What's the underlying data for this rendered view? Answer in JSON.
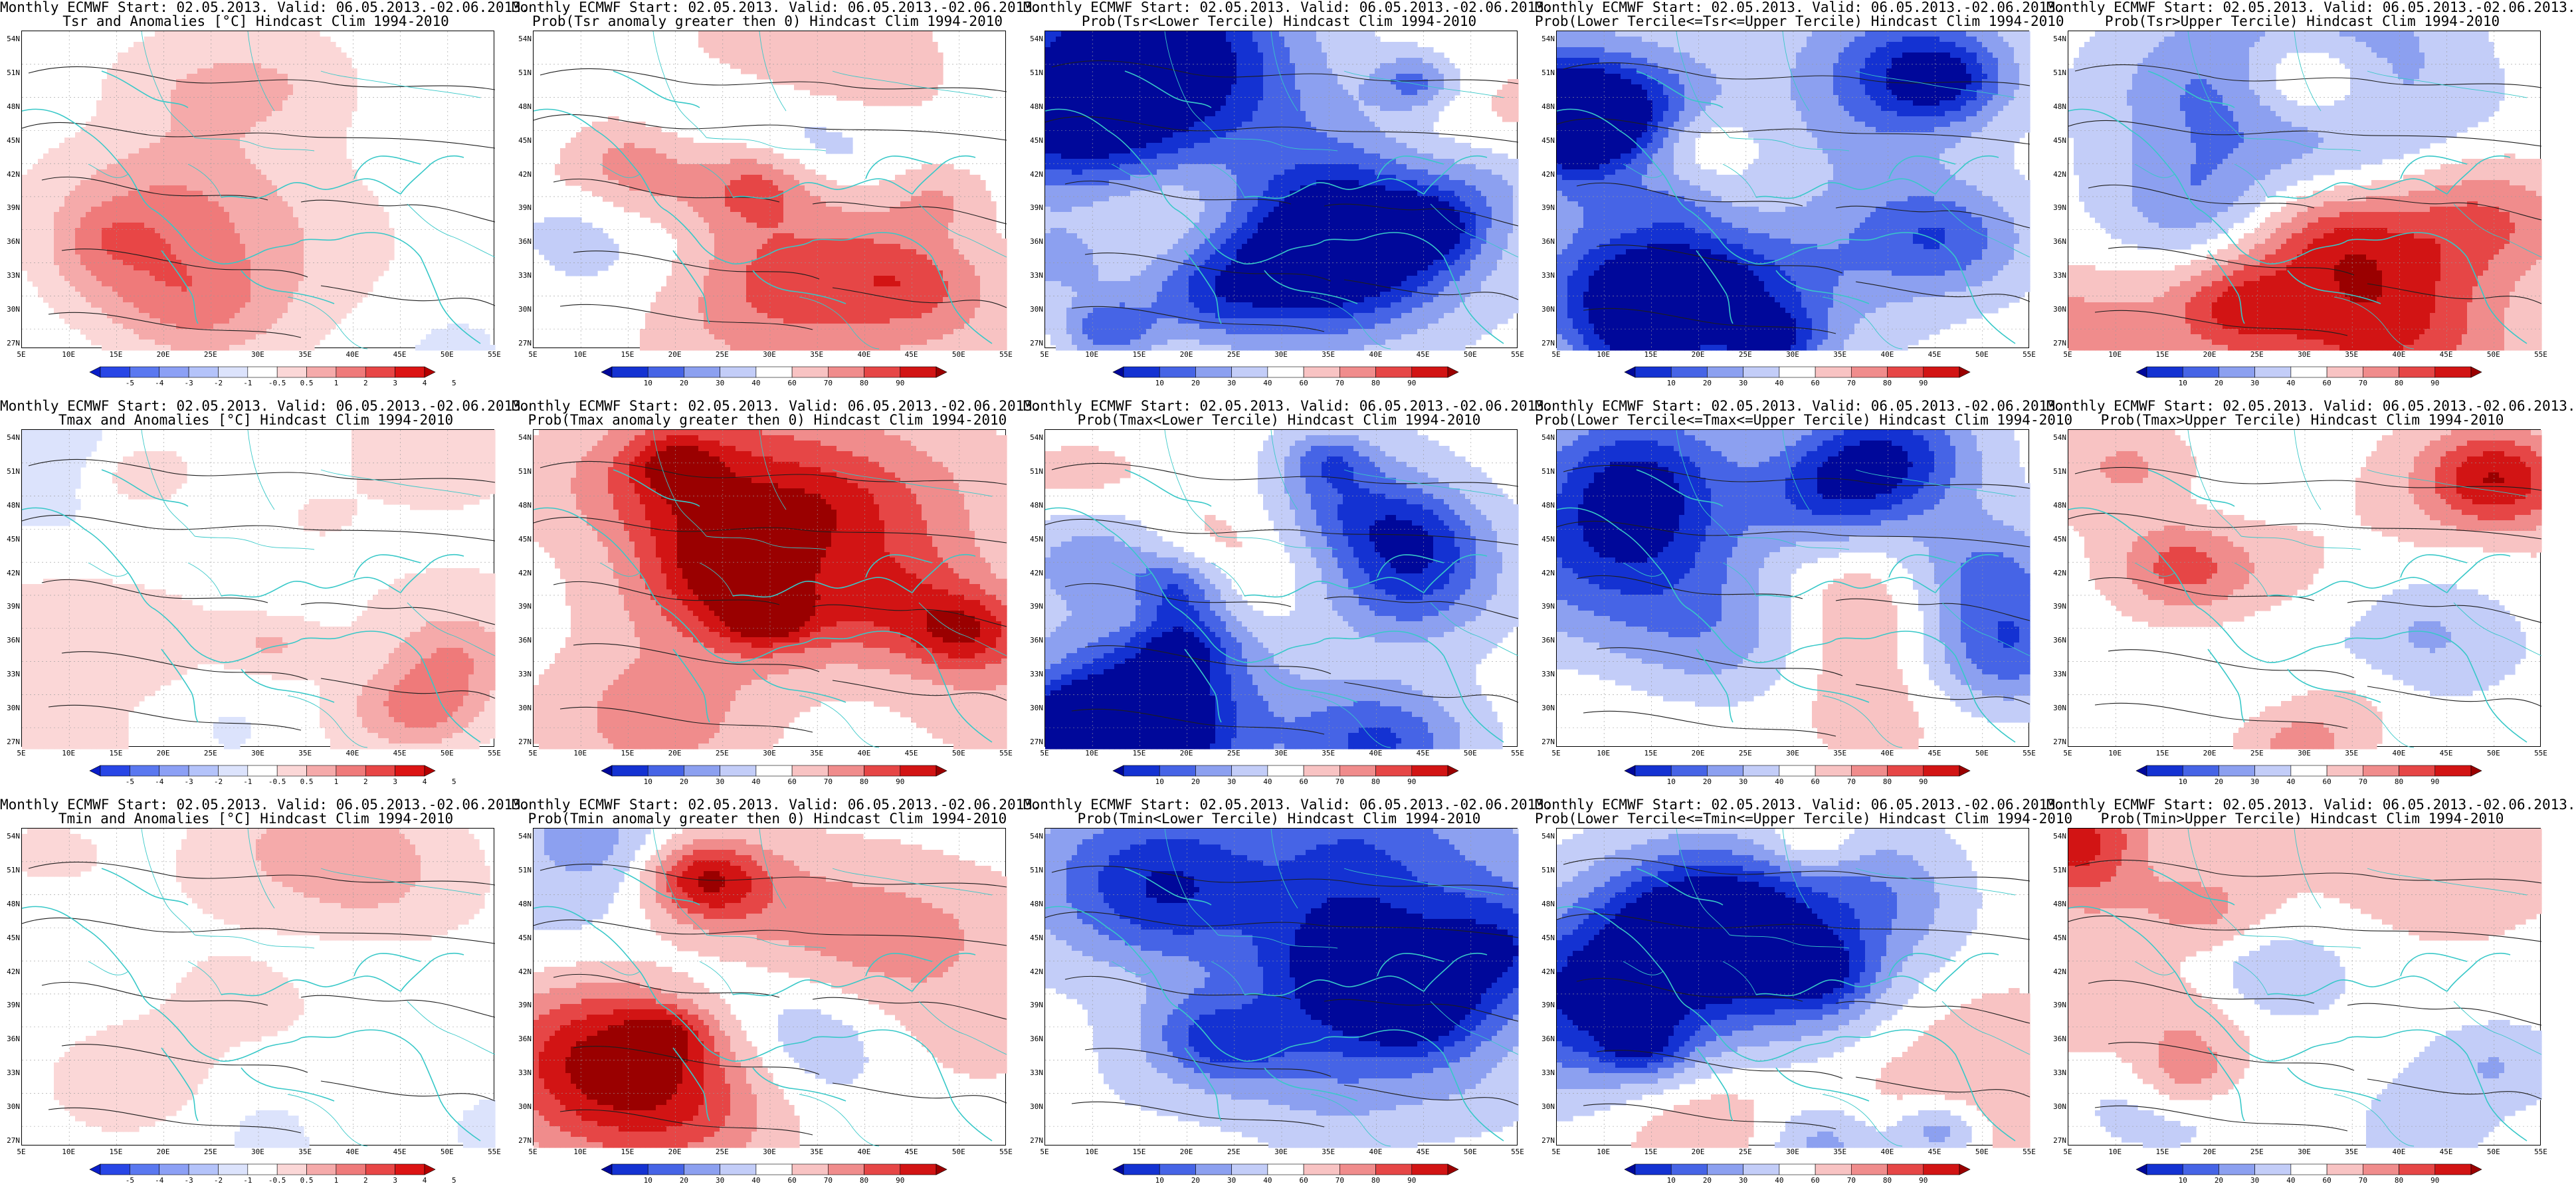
{
  "rows": [
    {
      "panels": [
        {
          "line1": "Monthly ECMWF Start: 02.05.2013. Valid: 06.05.2013.-02.06.2013.",
          "line2": "Tsr and Anomalies [°C] Hindcast Clim 1994-2010",
          "kind": "anom"
        },
        {
          "line1": "Monthly ECMWF Start: 02.05.2013. Valid: 06.05.2013.-02.06.2013.",
          "line2": "Prob(Tsr anomaly greater then 0) Hindcast Clim 1994-2010",
          "kind": "prob"
        },
        {
          "line1": "Monthly ECMWF Start: 02.05.2013. Valid: 06.05.2013.-02.06.2013.",
          "line2": "Prob(Tsr<Lower Tercile) Hindcast Clim 1994-2010",
          "kind": "prob"
        },
        {
          "line1": "Monthly ECMWF Start: 02.05.2013. Valid: 06.05.2013.-02.06.2013.",
          "line2": "Prob(Lower Tercile<=Tsr<=Upper Tercile) Hindcast Clim 1994-2010",
          "kind": "prob"
        },
        {
          "line1": "Monthly ECMWF Start: 02.05.2013. Valid: 06.05.2013.-02.06.2013.",
          "line2": "Prob(Tsr>Upper Tercile) Hindcast Clim 1994-2010",
          "kind": "prob"
        }
      ]
    },
    {
      "panels": [
        {
          "line1": "Monthly ECMWF Start: 02.05.2013. Valid: 06.05.2013.-02.06.2013.",
          "line2": "Tmax and Anomalies [°C] Hindcast Clim 1994-2010",
          "kind": "anom"
        },
        {
          "line1": "Monthly ECMWF Start: 02.05.2013. Valid: 06.05.2013.-02.06.2013.",
          "line2": "Prob(Tmax anomaly greater then 0) Hindcast Clim 1994-2010",
          "kind": "prob"
        },
        {
          "line1": "Monthly ECMWF Start: 02.05.2013. Valid: 06.05.2013.-02.06.2013.",
          "line2": "Prob(Tmax<Lower Tercile) Hindcast Clim 1994-2010",
          "kind": "prob"
        },
        {
          "line1": "Monthly ECMWF Start: 02.05.2013. Valid: 06.05.2013.-02.06.2013.",
          "line2": "Prob(Lower Tercile<=Tmax<=Upper Tercile) Hindcast Clim 1994-2010",
          "kind": "prob"
        },
        {
          "line1": "Monthly ECMWF Start: 02.05.2013. Valid: 06.05.2013.-02.06.2013.",
          "line2": "Prob(Tmax>Upper Tercile) Hindcast Clim 1994-2010",
          "kind": "prob"
        }
      ]
    },
    {
      "panels": [
        {
          "line1": "Monthly ECMWF Start: 02.05.2013. Valid: 06.05.2013.-02.06.2013.",
          "line2": "Tmin and Anomalies [°C] Hindcast Clim 1994-2010",
          "kind": "anom"
        },
        {
          "line1": "Monthly ECMWF Start: 02.05.2013. Valid: 06.05.2013.-02.06.2013.",
          "line2": "Prob(Tmin anomaly greater then 0) Hindcast Clim 1994-2010",
          "kind": "prob"
        },
        {
          "line1": "Monthly ECMWF Start: 02.05.2013. Valid: 06.05.2013.-02.06.2013.",
          "line2": "Prob(Tmin<Lower Tercile) Hindcast Clim 1994-2010",
          "kind": "prob"
        },
        {
          "line1": "Monthly ECMWF Start: 02.05.2013. Valid: 06.05.2013.-02.06.2013.",
          "line2": "Prob(Lower Tercile<=Tmin<=Upper Tercile) Hindcast Clim 1994-2010",
          "kind": "prob"
        },
        {
          "line1": "Monthly ECMWF Start: 02.05.2013. Valid: 06.05.2013.-02.06.2013.",
          "line2": "Prob(Tmin>Upper Tercile) Hindcast Clim 1994-2010",
          "kind": "prob"
        }
      ]
    }
  ],
  "lat_labels": [
    "54N",
    "51N",
    "48N",
    "45N",
    "42N",
    "39N",
    "36N",
    "33N",
    "30N",
    "27N"
  ],
  "lon_labels": [
    "5E",
    "10E",
    "15E",
    "20E",
    "25E",
    "30E",
    "35E",
    "40E",
    "45E",
    "50E",
    "55E"
  ],
  "colorbars": {
    "anom": {
      "labels": [
        "-5",
        "-4",
        "-3",
        "-2",
        "-1",
        "-0.5",
        "0.5",
        "1",
        "2",
        "3",
        "4",
        "5"
      ],
      "colors": [
        "#0a1ec8",
        "#2846e6",
        "#5a78f0",
        "#8ca0f5",
        "#b4c3fa",
        "#dce3fc",
        "#ffffff",
        "#fbd7d7",
        "#f5aaaa",
        "#ef7a7a",
        "#e84646",
        "#dc1414",
        "#b40000"
      ]
    },
    "prob": {
      "labels": [
        "10",
        "20",
        "30",
        "40",
        "60",
        "70",
        "80",
        "90"
      ],
      "colors": [
        "#00089a",
        "#1432d2",
        "#4664e6",
        "#8ca0f0",
        "#c3cdf8",
        "#ffffff",
        "#f8c3c3",
        "#f08c8c",
        "#e64646",
        "#d21414",
        "#9a0000"
      ]
    }
  },
  "colors": {
    "coastline": "#38c8c8",
    "contour": "#1e1e1e"
  }
}
